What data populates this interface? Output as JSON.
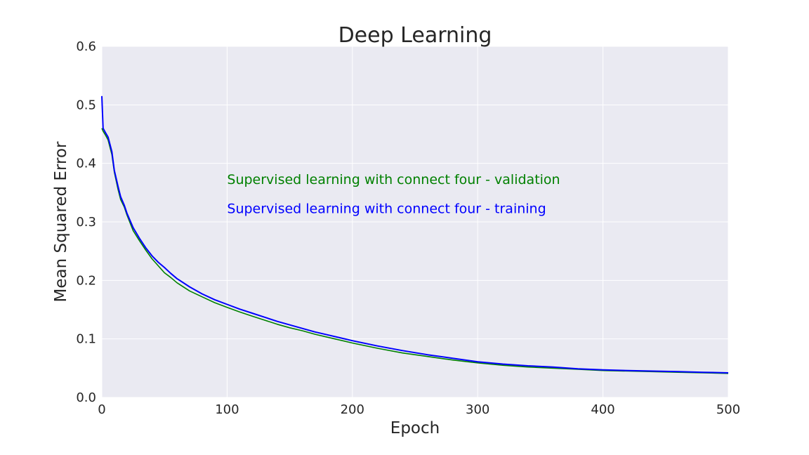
{
  "chart_data": {
    "type": "line",
    "title": "Deep Learning",
    "xlabel": "Epoch",
    "ylabel": "Mean Squared Error",
    "xlim": [
      0,
      500
    ],
    "ylim": [
      0.0,
      0.6
    ],
    "xticks": [
      "0",
      "100",
      "200",
      "300",
      "400",
      "500"
    ],
    "yticks": [
      "0.0",
      "0.1",
      "0.2",
      "0.3",
      "0.4",
      "0.5",
      "0.6"
    ],
    "grid": true,
    "background": "#eaeaf2",
    "annotations": [
      {
        "text": "Supervised learning with connect four - validation",
        "color": "#008000",
        "x": 100,
        "y": 0.365
      },
      {
        "text": "Supervised learning with connect four - training",
        "color": "#0000ff",
        "x": 100,
        "y": 0.315
      }
    ],
    "series": [
      {
        "color": "#008000",
        "x": [
          0,
          1,
          3,
          5,
          8,
          10,
          13,
          15,
          18,
          20,
          25,
          30,
          35,
          40,
          45,
          50,
          55,
          60,
          70,
          80,
          90,
          100,
          110,
          120,
          130,
          140,
          150,
          160,
          170,
          180,
          190,
          200,
          220,
          240,
          260,
          280,
          300,
          320,
          340,
          360,
          380,
          400,
          420,
          440,
          460,
          480,
          500
        ],
        "y": [
          0.46,
          0.455,
          0.448,
          0.44,
          0.415,
          0.385,
          0.355,
          0.338,
          0.325,
          0.312,
          0.285,
          0.268,
          0.252,
          0.237,
          0.225,
          0.213,
          0.205,
          0.196,
          0.182,
          0.172,
          0.162,
          0.154,
          0.146,
          0.139,
          0.132,
          0.125,
          0.119,
          0.114,
          0.108,
          0.103,
          0.098,
          0.093,
          0.084,
          0.076,
          0.07,
          0.064,
          0.059,
          0.055,
          0.052,
          0.05,
          0.048,
          0.046,
          0.045,
          0.044,
          0.043,
          0.042,
          0.041
        ]
      },
      {
        "color": "#0000ff",
        "x": [
          0,
          1,
          3,
          5,
          8,
          10,
          13,
          15,
          18,
          20,
          25,
          30,
          35,
          40,
          45,
          50,
          55,
          60,
          70,
          80,
          90,
          100,
          110,
          120,
          130,
          140,
          150,
          160,
          170,
          180,
          190,
          200,
          220,
          240,
          260,
          280,
          300,
          320,
          340,
          360,
          380,
          400,
          420,
          440,
          460,
          480,
          500
        ],
        "y": [
          0.515,
          0.46,
          0.452,
          0.445,
          0.42,
          0.388,
          0.36,
          0.343,
          0.328,
          0.315,
          0.29,
          0.272,
          0.256,
          0.242,
          0.231,
          0.222,
          0.212,
          0.203,
          0.189,
          0.177,
          0.167,
          0.159,
          0.151,
          0.144,
          0.137,
          0.13,
          0.124,
          0.118,
          0.112,
          0.107,
          0.102,
          0.097,
          0.088,
          0.08,
          0.073,
          0.067,
          0.061,
          0.057,
          0.054,
          0.052,
          0.049,
          0.047,
          0.046,
          0.045,
          0.044,
          0.043,
          0.042
        ]
      }
    ]
  }
}
